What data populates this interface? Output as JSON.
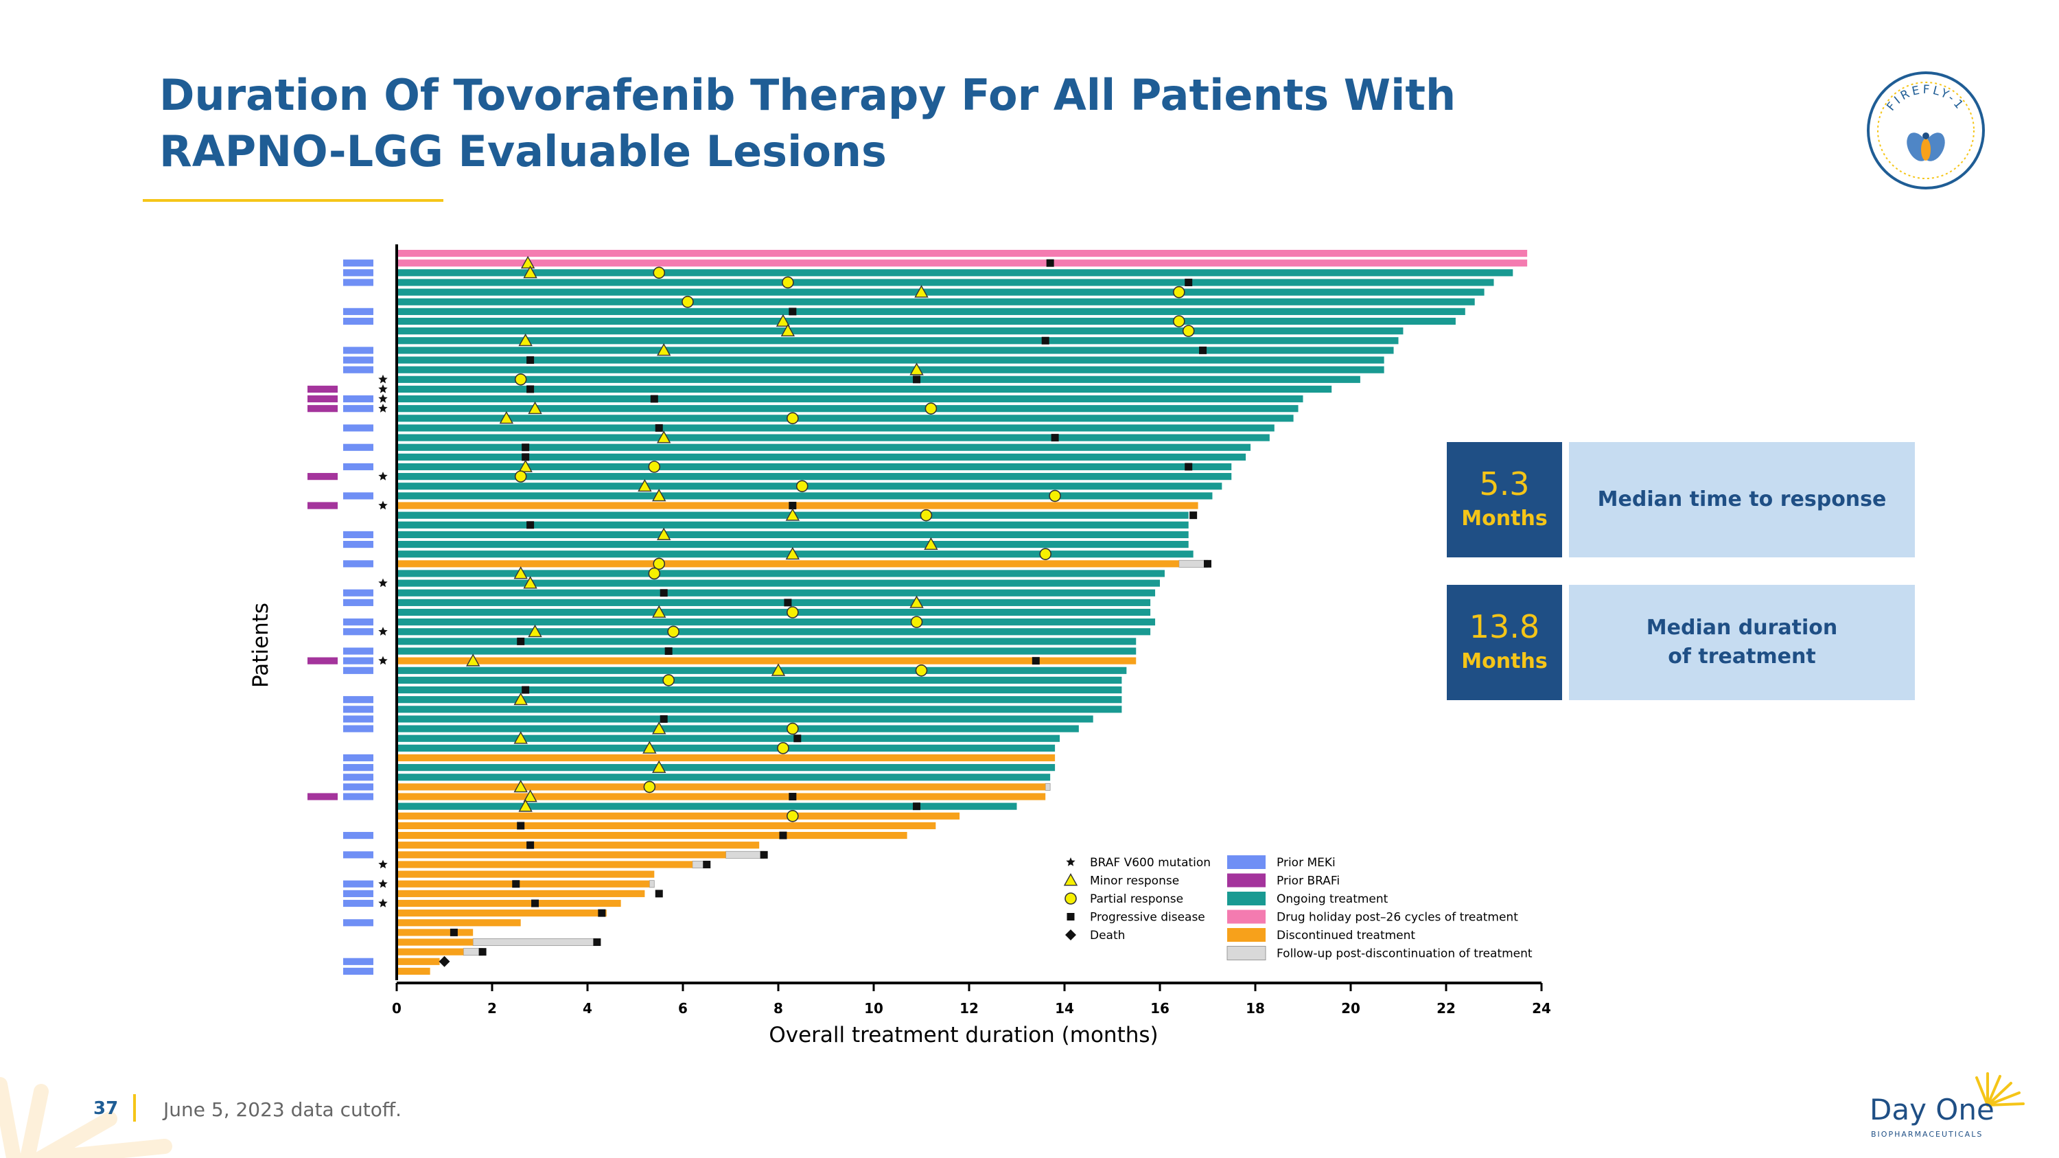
{
  "slide": {
    "title_line1": "Duration Of Tovorafenib Therapy For All Patients With",
    "title_line2": "RAPNO-LGG Evaluable Lesions",
    "page_number": "37",
    "footnote": "June 5, 2023 data cutoff.",
    "logo_text": "FIREFLY-1",
    "brand_name": "Day One",
    "brand_sub": "BIOPHARMACEUTICALS",
    "colors": {
      "title": "#1f5d95",
      "accent": "#f5c518",
      "stat_dark": "#1f4f85",
      "stat_light": "#c6dcf1"
    }
  },
  "stats": [
    {
      "value": "5.3",
      "unit": "Months",
      "label": "Median time to response"
    },
    {
      "value": "13.8",
      "unit": "Months",
      "label": "Median duration of treatment"
    }
  ],
  "chart_data": {
    "type": "bar",
    "orientation": "horizontal",
    "xlabel": "Overall treatment duration (months)",
    "ylabel": "Patients",
    "xlim": [
      0,
      24
    ],
    "xticks": [
      "0",
      "2",
      "4",
      "6",
      "8",
      "10",
      "12",
      "14",
      "16",
      "18",
      "20",
      "22",
      "24"
    ],
    "series_colors": {
      "ongoing": "#199a92",
      "holiday": "#f47bb0",
      "discontinued": "#f7a11b",
      "followup": "#d9d9d9",
      "meki": "#6f8ff5",
      "brafi": "#a4349c"
    },
    "legend": {
      "placement": "bottom-right",
      "markers": [
        {
          "symbol": "star",
          "label": "BRAF V600 mutation"
        },
        {
          "symbol": "triangle",
          "label": "Minor response"
        },
        {
          "symbol": "circle",
          "label": "Partial response"
        },
        {
          "symbol": "square",
          "label": "Progressive disease"
        },
        {
          "symbol": "diamond",
          "label": "Death"
        }
      ],
      "fills": [
        {
          "key": "meki",
          "label": "Prior MEKi"
        },
        {
          "key": "brafi",
          "label": "Prior BRAFi"
        },
        {
          "key": "ongoing",
          "label": "Ongoing treatment"
        },
        {
          "key": "holiday",
          "label": "Drug holiday post–26 cycles of treatment"
        },
        {
          "key": "discontinued",
          "label": "Discontinued treatment"
        },
        {
          "key": "followup",
          "label": "Follow-up post-discontinuation of treatment"
        }
      ]
    },
    "patients": [
      {
        "d": 23.7,
        "s": "holiday",
        "meki": 0
      },
      {
        "d": 23.7,
        "s": "holiday",
        "meki": 1,
        "mr": 2.75,
        "pd": 13.7
      },
      {
        "d": 23.4,
        "s": "ongoing",
        "meki": 1,
        "mr": 2.8,
        "pr": 5.5
      },
      {
        "d": 23.0,
        "s": "ongoing",
        "meki": 1,
        "pr": 8.2,
        "pd": 16.6
      },
      {
        "d": 22.8,
        "s": "ongoing",
        "meki": 0,
        "mr": 11.0,
        "pr": 16.4
      },
      {
        "d": 22.6,
        "s": "ongoing",
        "meki": 0,
        "pr": 6.1
      },
      {
        "d": 22.4,
        "s": "ongoing",
        "meki": 1,
        "pd": 8.3
      },
      {
        "d": 22.2,
        "s": "ongoing",
        "meki": 1,
        "mr": 8.1,
        "pr": 16.4
      },
      {
        "d": 21.1,
        "s": "ongoing",
        "meki": 0,
        "mr": 8.2,
        "pr": 16.6
      },
      {
        "d": 21.0,
        "s": "ongoing",
        "meki": 0,
        "mr": 2.7,
        "pd": 13.6
      },
      {
        "d": 20.9,
        "s": "ongoing",
        "meki": 1,
        "mr": 5.6,
        "pd": 16.9
      },
      {
        "d": 20.7,
        "s": "ongoing",
        "meki": 1,
        "pd": 2.8
      },
      {
        "d": 20.7,
        "s": "ongoing",
        "meki": 1,
        "mr": 10.9
      },
      {
        "d": 20.2,
        "s": "ongoing",
        "meki": 0,
        "star": 1,
        "pr": 2.6,
        "pd": 10.9
      },
      {
        "d": 19.6,
        "s": "ongoing",
        "meki": 0,
        "brafi": 1,
        "star": 1,
        "pd": 2.8
      },
      {
        "d": 19.0,
        "s": "ongoing",
        "meki": 1,
        "brafi": 1,
        "star": 1,
        "pd": 5.4
      },
      {
        "d": 18.9,
        "s": "ongoing",
        "meki": 1,
        "brafi": 1,
        "star": 1,
        "mr": 2.9,
        "pr": 11.2
      },
      {
        "d": 18.8,
        "s": "ongoing",
        "meki": 0,
        "mr": 2.3,
        "pr": 8.3
      },
      {
        "d": 18.4,
        "s": "ongoing",
        "meki": 1,
        "pd": 5.5
      },
      {
        "d": 18.3,
        "s": "ongoing",
        "meki": 0,
        "mr": 5.6,
        "pd": 13.8
      },
      {
        "d": 17.9,
        "s": "ongoing",
        "meki": 1,
        "pd": 2.7
      },
      {
        "d": 17.8,
        "s": "ongoing",
        "meki": 0,
        "pd": 2.7
      },
      {
        "d": 17.5,
        "s": "ongoing",
        "meki": 1,
        "mr": 2.7,
        "pr": 5.4,
        "pd": 16.6
      },
      {
        "d": 17.5,
        "s": "ongoing",
        "meki": 0,
        "brafi": 1,
        "star": 1,
        "pr": 2.6
      },
      {
        "d": 17.3,
        "s": "ongoing",
        "meki": 0,
        "mr": 5.2,
        "pr": 8.5
      },
      {
        "d": 17.1,
        "s": "ongoing",
        "meki": 1,
        "mr": 5.5,
        "pr": 13.8
      },
      {
        "d": 16.8,
        "s": "discontinued",
        "meki": 0,
        "brafi": 1,
        "star": 1,
        "pd": 8.3
      },
      {
        "d": 16.6,
        "s": "ongoing",
        "meki": 0,
        "mr": 8.3,
        "pr": 11.1,
        "pd": 16.7
      },
      {
        "d": 16.6,
        "s": "ongoing",
        "meki": 0,
        "pd": 2.8
      },
      {
        "d": 16.6,
        "s": "ongoing",
        "meki": 1,
        "mr": 5.6
      },
      {
        "d": 16.6,
        "s": "ongoing",
        "meki": 1,
        "mr": 11.2
      },
      {
        "d": 16.7,
        "s": "ongoing",
        "meki": 0,
        "mr": 8.3,
        "pr": 13.6
      },
      {
        "d": 16.4,
        "s": "discontinued",
        "fu": 17.0,
        "meki": 1,
        "pr": 5.5,
        "pd": 17.0
      },
      {
        "d": 16.1,
        "s": "ongoing",
        "meki": 0,
        "mr": 2.6,
        "pr": 5.4
      },
      {
        "d": 16.0,
        "s": "ongoing",
        "meki": 0,
        "star": 1,
        "mr": 2.8
      },
      {
        "d": 15.9,
        "s": "ongoing",
        "meki": 1,
        "pd": 5.6
      },
      {
        "d": 15.8,
        "s": "ongoing",
        "meki": 1,
        "pd": 8.2,
        "mr": 10.9
      },
      {
        "d": 15.8,
        "s": "ongoing",
        "meki": 0,
        "mr": 5.5,
        "pr": 8.3
      },
      {
        "d": 15.9,
        "s": "ongoing",
        "meki": 1,
        "pr": 10.9
      },
      {
        "d": 15.8,
        "s": "ongoing",
        "meki": 1,
        "star": 1,
        "mr": 2.9,
        "pr": 5.8
      },
      {
        "d": 15.5,
        "s": "ongoing",
        "meki": 0,
        "pd": 2.6
      },
      {
        "d": 15.5,
        "s": "ongoing",
        "meki": 1,
        "pd": 5.7
      },
      {
        "d": 15.5,
        "s": "discontinued",
        "meki": 1,
        "brafi": 1,
        "star": 1,
        "mr": 1.6,
        "pd": 13.4
      },
      {
        "d": 15.3,
        "s": "ongoing",
        "meki": 1,
        "mr": 8.0,
        "pr": 11.0
      },
      {
        "d": 15.2,
        "s": "ongoing",
        "meki": 0,
        "pr": 5.7
      },
      {
        "d": 15.2,
        "s": "ongoing",
        "meki": 0,
        "pd": 2.7
      },
      {
        "d": 15.2,
        "s": "ongoing",
        "meki": 1,
        "mr": 2.6
      },
      {
        "d": 15.2,
        "s": "ongoing",
        "meki": 1
      },
      {
        "d": 14.6,
        "s": "ongoing",
        "meki": 1,
        "pd": 5.6
      },
      {
        "d": 14.3,
        "s": "ongoing",
        "meki": 1,
        "mr": 5.5,
        "pr": 8.3
      },
      {
        "d": 13.9,
        "s": "ongoing",
        "meki": 0,
        "mr": 2.6,
        "pd": 8.4
      },
      {
        "d": 13.8,
        "s": "ongoing",
        "meki": 0,
        "mr": 5.3,
        "pr": 8.1
      },
      {
        "d": 13.8,
        "s": "discontinued",
        "meki": 1
      },
      {
        "d": 13.8,
        "s": "ongoing",
        "meki": 1,
        "mr": 5.5
      },
      {
        "d": 13.7,
        "s": "ongoing",
        "meki": 1
      },
      {
        "d": 13.6,
        "s": "discontinued",
        "fu": 13.7,
        "meki": 1,
        "mr": 2.6,
        "pr": 5.3
      },
      {
        "d": 13.6,
        "s": "discontinued",
        "meki": 1,
        "brafi": 1,
        "mr": 2.8,
        "pd": 8.3
      },
      {
        "d": 13.0,
        "s": "ongoing",
        "meki": 0,
        "mr": 2.7,
        "pd": 10.9
      },
      {
        "d": 11.8,
        "s": "discontinued",
        "meki": 0,
        "pr": 8.3
      },
      {
        "d": 11.3,
        "s": "discontinued",
        "meki": 0,
        "pd": 2.6
      },
      {
        "d": 10.7,
        "s": "discontinued",
        "meki": 1,
        "pd": 8.1
      },
      {
        "d": 7.6,
        "s": "discontinued",
        "meki": 0,
        "pd": 2.8
      },
      {
        "d": 6.9,
        "s": "discontinued",
        "fu": 7.7,
        "meki": 1,
        "pd": 7.7
      },
      {
        "d": 6.2,
        "s": "discontinued",
        "fu": 6.5,
        "meki": 0,
        "star": 1,
        "pd": 6.5
      },
      {
        "d": 5.4,
        "s": "discontinued",
        "meki": 0
      },
      {
        "d": 5.3,
        "s": "discontinued",
        "fu": 5.4,
        "meki": 1,
        "star": 1,
        "pd": 2.5
      },
      {
        "d": 5.2,
        "s": "discontinued",
        "meki": 1,
        "pd": 5.5
      },
      {
        "d": 4.7,
        "s": "discontinued",
        "meki": 1,
        "star": 1,
        "pd": 2.9
      },
      {
        "d": 4.4,
        "s": "discontinued",
        "meki": 0,
        "pd": 4.3
      },
      {
        "d": 2.6,
        "s": "discontinued",
        "meki": 1
      },
      {
        "d": 1.6,
        "s": "discontinued",
        "meki": 0,
        "pd": 1.2
      },
      {
        "d": 1.6,
        "s": "discontinued",
        "fu": 4.2,
        "meki": 0,
        "pd": 4.2
      },
      {
        "d": 1.4,
        "s": "discontinued",
        "fu": 1.8,
        "meki": 0,
        "pd": 1.8
      },
      {
        "d": 0.9,
        "s": "discontinued",
        "meki": 1,
        "death": 1.0
      },
      {
        "d": 0.7,
        "s": "discontinued",
        "meki": 1
      }
    ]
  }
}
